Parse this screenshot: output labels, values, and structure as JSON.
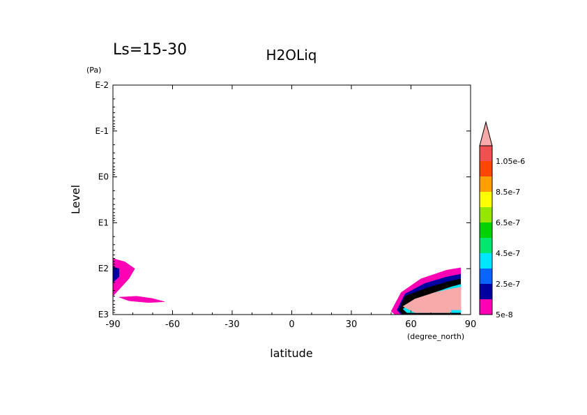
{
  "chart_data": {
    "type": "contour",
    "title": "H2OLiq",
    "subtitle": "Ls=15-30",
    "xlabel": "latitude",
    "x_units": "(degree_north)",
    "ylabel": "Level",
    "y_units": "(Pa)",
    "x_ticks": [
      {
        "value": -90,
        "label": "-90"
      },
      {
        "value": -60,
        "label": "-60"
      },
      {
        "value": -30,
        "label": "-30"
      },
      {
        "value": 0,
        "label": "0"
      },
      {
        "value": 30,
        "label": "30"
      },
      {
        "value": 60,
        "label": "60"
      },
      {
        "value": 90,
        "label": "90"
      }
    ],
    "y_ticks": [
      {
        "exp": -2,
        "label": "E-2"
      },
      {
        "exp": -1,
        "label": "E-1"
      },
      {
        "exp": 0,
        "label": "E0"
      },
      {
        "exp": 1,
        "label": "E1"
      },
      {
        "exp": 2,
        "label": "E2"
      },
      {
        "exp": 3,
        "label": "E3"
      }
    ],
    "xlim": [
      -90,
      90
    ],
    "y_scale": "log",
    "y_inverted": true,
    "ylim_exp": [
      3,
      -2
    ],
    "colorbar": {
      "levels": [
        {
          "value": "5e-8",
          "color": "#ff00b4",
          "label": "5e-8"
        },
        {
          "value": "1.5e-7",
          "color": "#0000a0",
          "label": ""
        },
        {
          "value": "2.5e-7",
          "color": "#0a64ff",
          "label": "2.5e-7"
        },
        {
          "value": "3.5e-7",
          "color": "#00e6ff",
          "label": ""
        },
        {
          "value": "4.5e-7",
          "color": "#00e66e",
          "label": "4.5e-7"
        },
        {
          "value": "5.5e-7",
          "color": "#00d200",
          "label": ""
        },
        {
          "value": "6.5e-7",
          "color": "#96e600",
          "label": "6.5e-7"
        },
        {
          "value": "7.5e-7",
          "color": "#ffff00",
          "label": ""
        },
        {
          "value": "8.5e-7",
          "color": "#ffa000",
          "label": "8.5e-7"
        },
        {
          "value": "9.5e-7",
          "color": "#ff4600",
          "label": ""
        },
        {
          "value": "1.05e-6",
          "color": "#f05050",
          "label": "1.05e-6"
        }
      ],
      "over_color": "#f8aaaa"
    },
    "regions": [
      {
        "name": "south-polar-outer",
        "color": "#ff00b4",
        "points": [
          [
            -90,
            2.6
          ],
          [
            -82,
            2.22
          ],
          [
            -79,
            2.0
          ],
          [
            -84,
            1.85
          ],
          [
            -90,
            1.78
          ]
        ]
      },
      {
        "name": "south-polar-tail",
        "color": "#ff00b4",
        "points": [
          [
            -87,
            2.62
          ],
          [
            -78,
            2.6
          ],
          [
            -70,
            2.65
          ],
          [
            -64,
            2.72
          ],
          [
            -72,
            2.74
          ],
          [
            -82,
            2.7
          ]
        ]
      },
      {
        "name": "south-polar-core",
        "color": "#0000a0",
        "points": [
          [
            -90,
            2.3
          ],
          [
            -87,
            2.18
          ],
          [
            -87,
            2.0
          ],
          [
            -90,
            1.96
          ]
        ]
      },
      {
        "name": "north-polar-outer",
        "color": "#ff00b4",
        "points": [
          [
            50,
            2.93
          ],
          [
            55,
            2.52
          ],
          [
            65,
            2.22
          ],
          [
            78,
            2.03
          ],
          [
            85,
            1.98
          ],
          [
            85,
            3.0
          ],
          [
            52,
            3.0
          ]
        ]
      },
      {
        "name": "north-polar-blue",
        "color": "#0000a0",
        "points": [
          [
            53,
            2.9
          ],
          [
            57,
            2.55
          ],
          [
            67,
            2.32
          ],
          [
            78,
            2.18
          ],
          [
            85,
            2.12
          ],
          [
            85,
            3.0
          ],
          [
            55,
            3.0
          ]
        ]
      },
      {
        "name": "north-polar-contours",
        "color": "#000000",
        "points": [
          [
            54,
            2.9
          ],
          [
            57,
            2.6
          ],
          [
            68,
            2.42
          ],
          [
            79,
            2.28
          ],
          [
            85,
            2.22
          ],
          [
            85,
            3.0
          ],
          [
            56,
            3.0
          ]
        ]
      },
      {
        "name": "north-polar-cyan",
        "color": "#00e6ff",
        "points": [
          [
            56,
            2.88
          ],
          [
            60,
            2.72
          ],
          [
            70,
            2.55
          ],
          [
            80,
            2.4
          ],
          [
            85,
            2.34
          ],
          [
            85,
            2.96
          ],
          [
            58,
            2.96
          ]
        ]
      },
      {
        "name": "north-polar-core",
        "color": "#f8aaaa",
        "points": [
          [
            56,
            2.82
          ],
          [
            62,
            2.66
          ],
          [
            72,
            2.52
          ],
          [
            80,
            2.44
          ],
          [
            85,
            2.4
          ],
          [
            85,
            2.9
          ],
          [
            80,
            2.9
          ],
          [
            80,
            2.96
          ],
          [
            62,
            2.96
          ]
        ]
      }
    ]
  }
}
